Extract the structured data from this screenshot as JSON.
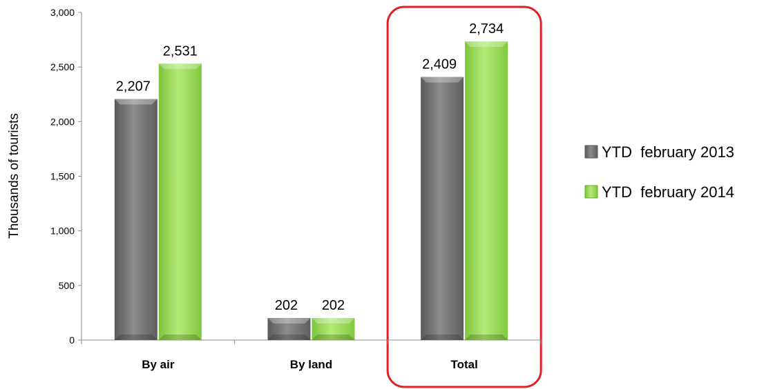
{
  "chart_data": {
    "type": "bar",
    "title": "",
    "xlabel": "",
    "ylabel": "Thousands  of  tourists",
    "ylim": [
      0,
      3000
    ],
    "yticks": [
      0,
      500,
      1000,
      1500,
      2000,
      2500,
      3000
    ],
    "ytick_labels": [
      "0",
      "500",
      "1,000",
      "1,500",
      "2,000",
      "2,500",
      "3,000"
    ],
    "categories": [
      "By air",
      "By land",
      "Total"
    ],
    "series": [
      {
        "name": "YTD  february 2013",
        "values": [
          2207,
          202,
          2409
        ],
        "labels": [
          "2,207",
          "202",
          "2,409"
        ],
        "color": "#7a7a7a"
      },
      {
        "name": "YTD  february 2014",
        "values": [
          2531,
          202,
          2734
        ],
        "labels": [
          "2,531",
          "202",
          "2,734"
        ],
        "color": "#9fdc5a"
      }
    ],
    "highlight_category": "Total",
    "highlight_color": "#e31e24",
    "grid": false,
    "legend_position": "right"
  }
}
